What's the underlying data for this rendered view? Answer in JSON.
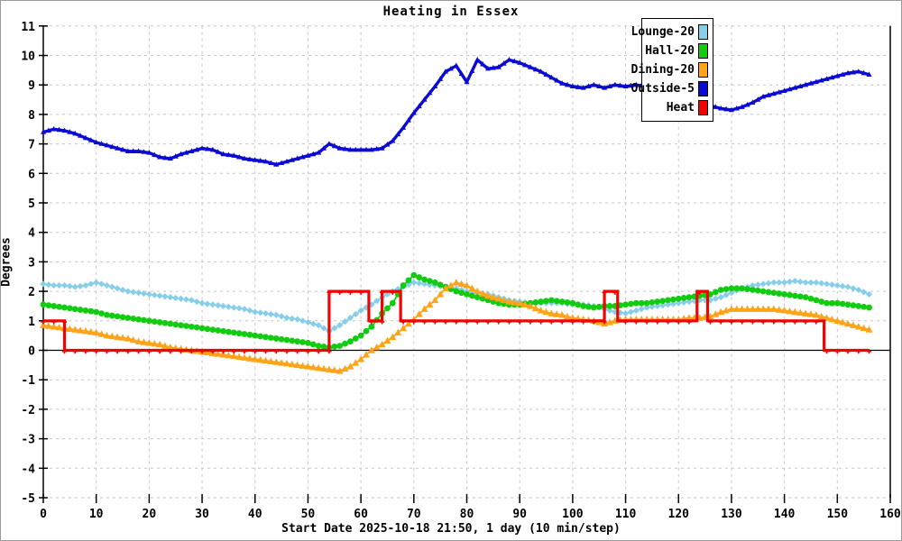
{
  "window": {
    "background": "#ffffff",
    "border_color": "#9a9a9a"
  },
  "chart_data": {
    "type": "line",
    "title": "Heating in Essex",
    "xlabel": "Start Date 2025-10-18 21:50, 1 day (10 min/step)",
    "ylabel": "Degrees",
    "xlim": [
      0,
      160
    ],
    "ylim": [
      -5,
      11
    ],
    "x_ticks": [
      0,
      10,
      20,
      30,
      40,
      50,
      60,
      70,
      80,
      90,
      100,
      110,
      120,
      130,
      140,
      150,
      160
    ],
    "y_ticks": [
      -5,
      -4,
      -3,
      -2,
      -1,
      0,
      1,
      2,
      3,
      4,
      5,
      6,
      7,
      8,
      9,
      10,
      11
    ],
    "grid": true,
    "grid_color": "#c6c6c6",
    "zero_line_color": "#000000",
    "legend_position": "top-right",
    "x_step_note": "x unit = 10 min steps",
    "series": [
      {
        "name": "Lounge-20",
        "color": "#87CEEB",
        "marker": "diamond",
        "x_start": 0,
        "x_step": 2,
        "values": [
          2.25,
          2.2,
          2.2,
          2.15,
          2.2,
          2.3,
          2.2,
          2.1,
          2.0,
          1.95,
          1.9,
          1.85,
          1.8,
          1.75,
          1.7,
          1.6,
          1.55,
          1.5,
          1.45,
          1.4,
          1.3,
          1.25,
          1.2,
          1.1,
          1.05,
          0.95,
          0.85,
          0.65,
          0.85,
          1.1,
          1.35,
          1.55,
          1.8,
          2.0,
          2.15,
          2.3,
          2.25,
          2.2,
          2.15,
          2.1,
          2.0,
          1.95,
          1.9,
          1.8,
          1.7,
          1.65,
          1.6,
          1.6,
          1.6,
          1.6,
          1.55,
          1.55,
          1.5,
          1.4,
          1.3,
          1.25,
          1.35,
          1.45,
          1.5,
          1.55,
          1.6,
          1.65,
          1.7,
          1.7,
          1.8,
          1.95,
          2.1,
          2.2,
          2.25,
          2.3,
          2.3,
          2.35,
          2.3,
          2.3,
          2.25,
          2.2,
          2.15,
          2.05,
          1.9
        ]
      },
      {
        "name": "Hall-20",
        "color": "#11CC11",
        "marker": "circle",
        "x_start": 0,
        "x_step": 2,
        "values": [
          1.55,
          1.5,
          1.45,
          1.4,
          1.35,
          1.3,
          1.2,
          1.15,
          1.1,
          1.05,
          1.0,
          0.95,
          0.9,
          0.85,
          0.8,
          0.75,
          0.7,
          0.65,
          0.6,
          0.55,
          0.5,
          0.45,
          0.4,
          0.35,
          0.3,
          0.25,
          0.15,
          0.1,
          0.15,
          0.3,
          0.5,
          0.8,
          1.25,
          1.6,
          2.2,
          2.55,
          2.4,
          2.3,
          2.15,
          2.0,
          1.9,
          1.8,
          1.7,
          1.6,
          1.55,
          1.55,
          1.6,
          1.65,
          1.7,
          1.65,
          1.6,
          1.5,
          1.45,
          1.5,
          1.5,
          1.55,
          1.6,
          1.6,
          1.65,
          1.7,
          1.75,
          1.8,
          1.85,
          1.9,
          2.05,
          2.1,
          2.1,
          2.05,
          2.0,
          1.95,
          1.9,
          1.85,
          1.8,
          1.7,
          1.6,
          1.6,
          1.55,
          1.5,
          1.45
        ]
      },
      {
        "name": "Dining-20",
        "color": "#FFA318",
        "marker": "triangle",
        "x_start": 0,
        "x_step": 2,
        "values": [
          0.85,
          0.8,
          0.75,
          0.7,
          0.65,
          0.6,
          0.5,
          0.45,
          0.4,
          0.3,
          0.25,
          0.2,
          0.1,
          0.05,
          0.0,
          -0.05,
          -0.1,
          -0.15,
          -0.2,
          -0.25,
          -0.3,
          -0.35,
          -0.4,
          -0.45,
          -0.5,
          -0.55,
          -0.6,
          -0.65,
          -0.7,
          -0.55,
          -0.3,
          0.0,
          0.2,
          0.45,
          0.75,
          1.05,
          1.4,
          1.7,
          2.1,
          2.3,
          2.2,
          2.0,
          1.85,
          1.75,
          1.65,
          1.6,
          1.5,
          1.35,
          1.25,
          1.2,
          1.1,
          1.05,
          1.0,
          0.9,
          1.0,
          1.05,
          1.05,
          1.05,
          1.05,
          1.05,
          1.05,
          1.1,
          1.1,
          1.15,
          1.3,
          1.4,
          1.4,
          1.4,
          1.4,
          1.4,
          1.35,
          1.3,
          1.25,
          1.2,
          1.1,
          1.0,
          0.9,
          0.8,
          0.7
        ]
      },
      {
        "name": "Outside-5",
        "color": "#0A0AD2",
        "marker": "small-triangle",
        "x_start": 0,
        "x_step": 2,
        "values": [
          7.4,
          7.5,
          7.45,
          7.35,
          7.2,
          7.05,
          6.95,
          6.85,
          6.75,
          6.75,
          6.7,
          6.55,
          6.5,
          6.65,
          6.75,
          6.85,
          6.8,
          6.65,
          6.6,
          6.5,
          6.45,
          6.4,
          6.3,
          6.4,
          6.5,
          6.6,
          6.7,
          7.0,
          6.85,
          6.8,
          6.8,
          6.8,
          6.85,
          7.1,
          7.55,
          8.05,
          8.5,
          8.95,
          9.45,
          9.65,
          9.1,
          9.85,
          9.55,
          9.6,
          9.85,
          9.75,
          9.6,
          9.45,
          9.25,
          9.05,
          8.95,
          8.9,
          9.0,
          8.9,
          9.0,
          8.95,
          9.0,
          8.95,
          8.85,
          8.7,
          8.55,
          8.45,
          8.35,
          8.3,
          8.2,
          8.15,
          8.25,
          8.4,
          8.6,
          8.7,
          8.8,
          8.9,
          9.0,
          9.1,
          9.2,
          9.3,
          9.4,
          9.45,
          9.35
        ]
      },
      {
        "name": "Heat",
        "color": "#EE0400",
        "marker": "plus",
        "step": true,
        "points": [
          [
            0,
            1
          ],
          [
            4,
            1
          ],
          [
            4,
            0
          ],
          [
            54,
            0
          ],
          [
            54,
            2
          ],
          [
            61.5,
            2
          ],
          [
            61.5,
            1
          ],
          [
            64,
            1
          ],
          [
            64,
            2
          ],
          [
            67.5,
            2
          ],
          [
            67.5,
            1
          ],
          [
            106,
            1
          ],
          [
            106,
            2
          ],
          [
            108.5,
            2
          ],
          [
            108.5,
            1
          ],
          [
            123.5,
            1
          ],
          [
            123.5,
            2
          ],
          [
            125.5,
            2
          ],
          [
            125.5,
            1
          ],
          [
            147.5,
            1
          ],
          [
            147.5,
            0
          ],
          [
            156,
            0
          ]
        ]
      }
    ]
  }
}
